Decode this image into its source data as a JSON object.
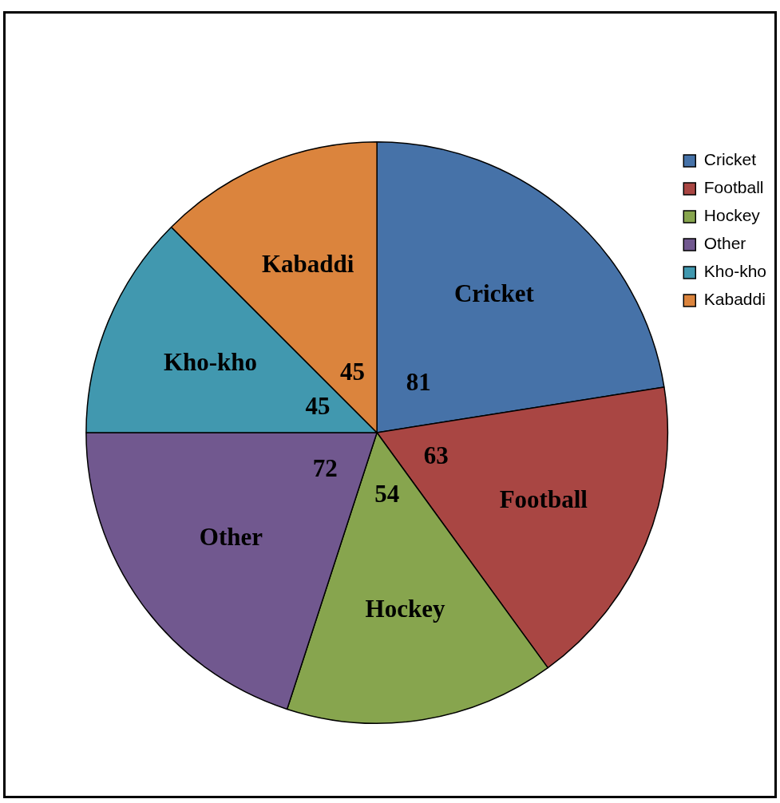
{
  "chart_data": {
    "type": "pie",
    "categories": [
      "Cricket",
      "Football",
      "Hockey",
      "Other",
      "Kho-kho",
      "Kabaddi"
    ],
    "values": [
      81,
      63,
      54,
      72,
      45,
      45
    ],
    "colors": [
      "#4672a8",
      "#a94643",
      "#87a54e",
      "#71588f",
      "#4198af",
      "#db843d"
    ],
    "data_labels": true,
    "legend": "top right"
  }
}
